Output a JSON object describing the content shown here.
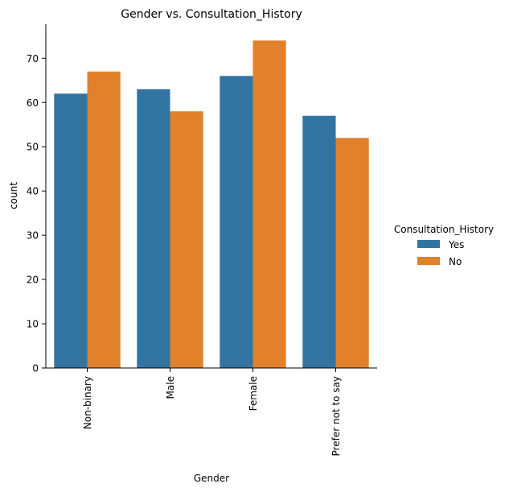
{
  "chart_data": {
    "type": "bar",
    "title": "Gender vs. Consultation_History",
    "xlabel": "Gender",
    "ylabel": "count",
    "categories": [
      "Non-binary",
      "Male",
      "Female",
      "Prefer not to say"
    ],
    "series": [
      {
        "name": "Yes",
        "color": "#3274a1",
        "values": [
          62,
          63,
          66,
          57
        ]
      },
      {
        "name": "No",
        "color": "#e1812c",
        "values": [
          67,
          58,
          74,
          52
        ]
      }
    ],
    "ylim": [
      0,
      77.7
    ],
    "yticks": [
      0,
      10,
      20,
      30,
      40,
      50,
      60,
      70
    ],
    "grid": false,
    "legend": {
      "title": "Consultation_History",
      "placement": "right-center"
    }
  }
}
